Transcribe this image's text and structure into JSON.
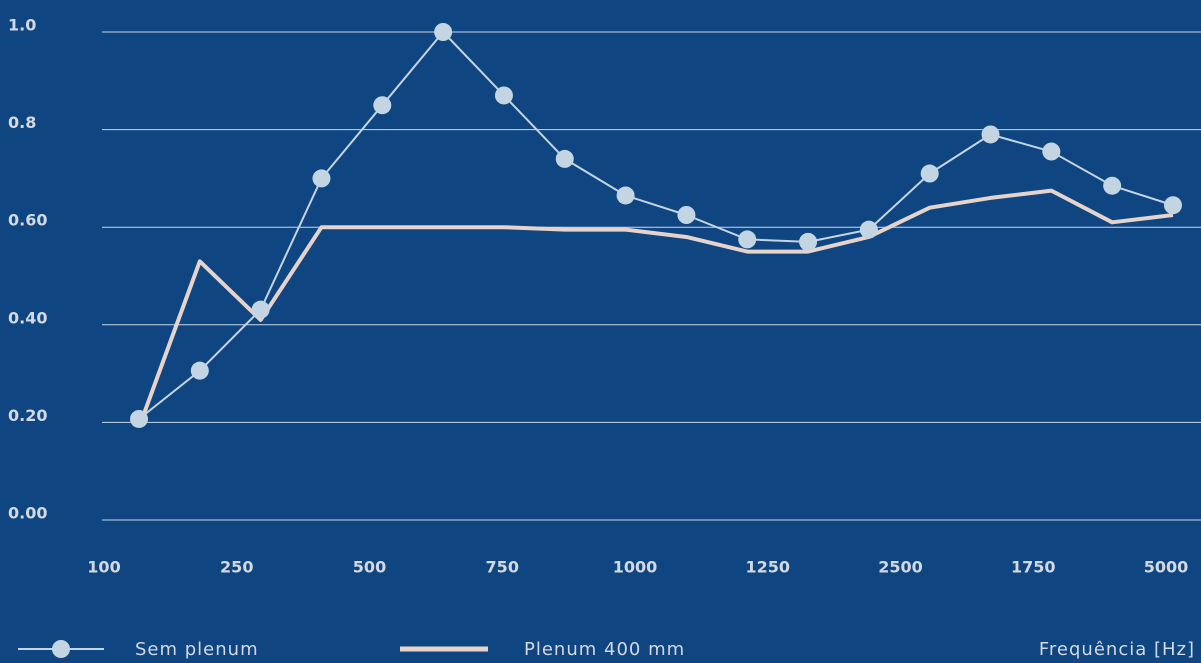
{
  "chart_data": {
    "type": "line",
    "categories": [
      null,
      null,
      null,
      null,
      null,
      null,
      null,
      null,
      null,
      null,
      null,
      null,
      null,
      null,
      null,
      null,
      null,
      null
    ],
    "x_labels": [
      "100",
      "250",
      "500",
      "750",
      "1000",
      "1250",
      "2500",
      "1750",
      "5000"
    ],
    "x_label": "Frequência [Hz]",
    "series": [
      {
        "name": "Sem plenum",
        "color": "#c3d5e3",
        "marker": true,
        "values": [
          0.207,
          0.306,
          0.431,
          0.7,
          0.85,
          1.0,
          0.87,
          0.74,
          0.665,
          0.625,
          0.575,
          0.57,
          0.595,
          0.71,
          0.79,
          0.755,
          0.685,
          0.645
        ]
      },
      {
        "name": "Plenum 400 mm",
        "color": "#e6d3cb",
        "marker": false,
        "values": [
          0.19,
          0.53,
          0.41,
          0.6,
          0.6,
          0.6,
          0.6,
          0.595,
          0.595,
          0.58,
          0.55,
          0.55,
          0.58,
          0.64,
          0.66,
          0.675,
          0.61,
          0.625
        ]
      }
    ],
    "ylim": [
      0,
      1.0
    ],
    "yticks": [
      {
        "value": 0,
        "label": "0.00"
      },
      {
        "value": 0.2,
        "label": "0.20"
      },
      {
        "value": 0.4,
        "label": "0.40"
      },
      {
        "value": 0.6,
        "label": "0.60"
      },
      {
        "value": 0.8,
        "label": "0.8"
      },
      {
        "value": 1.0,
        "label": "1.0"
      }
    ],
    "grid": true
  }
}
